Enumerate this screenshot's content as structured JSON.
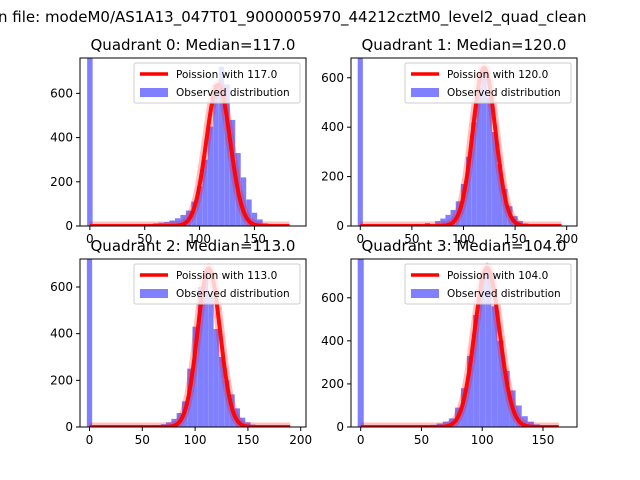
{
  "figure": {
    "suptitle": "n file: modeM0/AS1A13_047T01_9000005970_44212cztM0_level2_quad_clean"
  },
  "colors": {
    "hist": "#8080ff",
    "poisson": "#ff0000"
  },
  "chart_data": [
    {
      "type": "bar",
      "title": "Quadrant 0: Median=117.0",
      "xlim": [
        -9,
        197
      ],
      "ylim": [
        0,
        760
      ],
      "xticks": [
        "0",
        "50",
        "100",
        "150"
      ],
      "yticks": [
        "0",
        "200",
        "400",
        "600"
      ],
      "legend": {
        "position": "upper-right",
        "line_label": "Poission with 117.0",
        "hist_label": "Observed distribution"
      },
      "poisson_mean": 117.0,
      "poisson_peak": 640,
      "x_zero_bin": 0,
      "hist_x": [
        0,
        45,
        50,
        55,
        60,
        65,
        70,
        75,
        80,
        85,
        90,
        95,
        100,
        105,
        110,
        115,
        120,
        125,
        130,
        135,
        140,
        145,
        150,
        155,
        160,
        165,
        170
      ],
      "hist_y": [
        760,
        3,
        5,
        8,
        12,
        15,
        18,
        25,
        35,
        50,
        70,
        110,
        180,
        300,
        450,
        640,
        720,
        640,
        480,
        330,
        220,
        120,
        60,
        30,
        12,
        5,
        2
      ]
    },
    {
      "type": "bar",
      "title": "Quadrant 1: Median=120.0",
      "xlim": [
        -9,
        210
      ],
      "ylim": [
        0,
        680
      ],
      "xticks": [
        "0",
        "50",
        "100",
        "150",
        "200"
      ],
      "yticks": [
        "0",
        "200",
        "400",
        "600"
      ],
      "legend": {
        "position": "upper-right",
        "line_label": "Poission with 120.0",
        "hist_label": "Observed distribution"
      },
      "poisson_mean": 120.0,
      "poisson_peak": 640,
      "x_zero_bin": 0,
      "hist_x": [
        0,
        45,
        55,
        65,
        75,
        80,
        85,
        90,
        95,
        100,
        105,
        110,
        115,
        120,
        125,
        130,
        135,
        140,
        145,
        150,
        155,
        160,
        170,
        180
      ],
      "hist_y": [
        680,
        4,
        8,
        12,
        20,
        30,
        45,
        65,
        100,
        170,
        280,
        420,
        560,
        630,
        520,
        380,
        250,
        150,
        80,
        40,
        20,
        10,
        5,
        3
      ]
    },
    {
      "type": "bar",
      "title": "Quadrant 2: Median=113.0",
      "xlim": [
        -9,
        205
      ],
      "ylim": [
        0,
        720
      ],
      "xticks": [
        "0",
        "50",
        "100",
        "150",
        "200"
      ],
      "yticks": [
        "0",
        "200",
        "400",
        "600"
      ],
      "legend": {
        "position": "upper-right",
        "line_label": "Poission with 113.0",
        "hist_label": "Observed distribution"
      },
      "poisson_mean": 113.0,
      "poisson_peak": 680,
      "x_zero_bin": 0,
      "hist_x": [
        0,
        55,
        60,
        65,
        70,
        75,
        80,
        85,
        90,
        95,
        100,
        105,
        110,
        115,
        120,
        125,
        130,
        135,
        140,
        145,
        150,
        155,
        160,
        170
      ],
      "hist_y": [
        720,
        3,
        5,
        8,
        12,
        20,
        35,
        60,
        110,
        250,
        430,
        600,
        650,
        560,
        420,
        300,
        200,
        140,
        80,
        40,
        20,
        10,
        5,
        2
      ]
    },
    {
      "type": "bar",
      "title": "Quadrant 3: Median=104.0",
      "xlim": [
        -8,
        178
      ],
      "ylim": [
        0,
        780
      ],
      "xticks": [
        "0",
        "50",
        "100",
        "150"
      ],
      "yticks": [
        "0",
        "200",
        "400",
        "600"
      ],
      "legend": {
        "position": "upper-right",
        "line_label": "Poission with 104.0",
        "hist_label": "Observed distribution"
      },
      "poisson_mean": 104.0,
      "poisson_peak": 740,
      "x_zero_bin": 0,
      "hist_x": [
        0,
        50,
        55,
        60,
        65,
        70,
        75,
        80,
        85,
        90,
        95,
        100,
        105,
        110,
        115,
        120,
        125,
        130,
        135,
        140,
        145,
        150,
        160
      ],
      "hist_y": [
        780,
        3,
        6,
        10,
        16,
        25,
        40,
        90,
        180,
        330,
        520,
        700,
        720,
        560,
        400,
        260,
        170,
        100,
        50,
        25,
        12,
        6,
        2
      ]
    }
  ]
}
